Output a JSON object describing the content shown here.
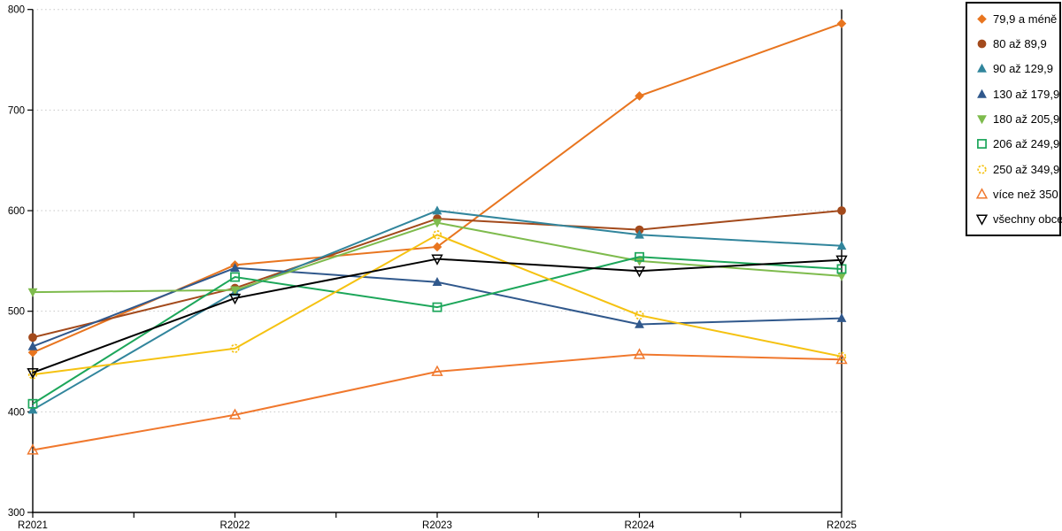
{
  "chart_data": {
    "type": "line",
    "title": "",
    "xlabel": "",
    "ylabel": "",
    "categories": [
      "R2021",
      "R2022",
      "R2023",
      "R2024",
      "R2025"
    ],
    "yticks": [
      300,
      400,
      500,
      600,
      700,
      800
    ],
    "ylim": [
      300,
      800
    ],
    "grid": "horizontal-dotted",
    "legend_position": "top-right-outside",
    "series": [
      {
        "name": "79,9 a méně",
        "color": "#E8751F",
        "marker": "diamond",
        "fill": "filled",
        "values": [
          459,
          546,
          564,
          714,
          786
        ]
      },
      {
        "name": "80 až 89,9",
        "color": "#A34A1C",
        "marker": "circle",
        "fill": "filled",
        "values": [
          474,
          523,
          592,
          581,
          600
        ]
      },
      {
        "name": "90 až 129,9",
        "color": "#31859C",
        "marker": "triangle-up",
        "fill": "filled",
        "values": [
          402,
          519,
          600,
          576,
          565
        ]
      },
      {
        "name": "130 až 179,9",
        "color": "#30588C",
        "marker": "triangle-up",
        "fill": "filled",
        "values": [
          465,
          543,
          529,
          487,
          493
        ]
      },
      {
        "name": "180 až 205,9",
        "color": "#7EBB4D",
        "marker": "triangle-down",
        "fill": "filled",
        "values": [
          519,
          521,
          588,
          550,
          535
        ]
      },
      {
        "name": "206 až 249,9",
        "color": "#1CA65A",
        "marker": "square",
        "fill": "open",
        "values": [
          408,
          534,
          504,
          554,
          542
        ]
      },
      {
        "name": "250 až 349,9",
        "color": "#F5C211",
        "marker": "circle-dashed",
        "fill": "open",
        "values": [
          437,
          463,
          576,
          496,
          455
        ]
      },
      {
        "name": "více než 350",
        "color": "#F0782D",
        "marker": "triangle-up",
        "fill": "open",
        "values": [
          362,
          397,
          440,
          457,
          452
        ]
      },
      {
        "name": "všechny obce",
        "color": "#000000",
        "marker": "triangle-down",
        "fill": "open",
        "values": [
          439,
          513,
          552,
          540,
          551
        ]
      }
    ]
  },
  "colors": {
    "background": "#FFFFFF",
    "axis": "#000000",
    "grid": "#C6C6C6",
    "legend_border": "#000000"
  }
}
